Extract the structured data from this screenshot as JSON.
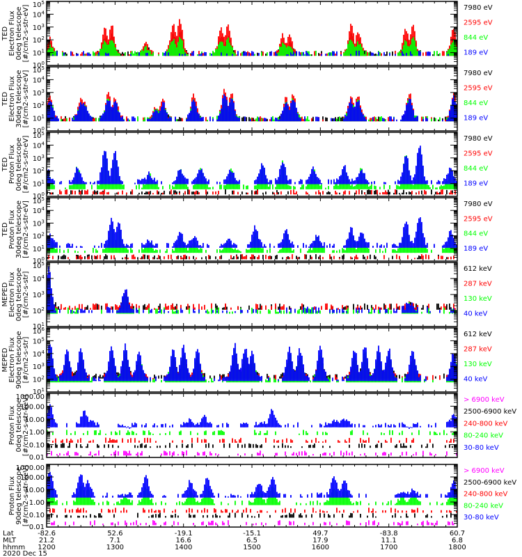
{
  "figure": {
    "date": "2020 Dec 15",
    "x_axis": {
      "row_labels": [
        "Lat",
        "MLT",
        "hhmm"
      ],
      "range_hours": [
        12.0,
        18.0
      ],
      "ticks": [
        {
          "hour": 12,
          "lat": "-82.6",
          "mlt": "21.2",
          "hhmm": "1200"
        },
        {
          "hour": 13,
          "lat": "52.6",
          "mlt": "7.1",
          "hhmm": "1300"
        },
        {
          "hour": 14,
          "lat": "-19.1",
          "mlt": "16.6",
          "hhmm": "1400"
        },
        {
          "hour": 15,
          "lat": "-15.1",
          "mlt": "6.5",
          "hhmm": "1500"
        },
        {
          "hour": 16,
          "lat": "49.7",
          "mlt": "17.9",
          "hhmm": "1600"
        },
        {
          "hour": 17,
          "lat": "-83.8",
          "mlt": "11.1",
          "hhmm": "1700"
        },
        {
          "hour": 18,
          "lat": "60.7",
          "mlt": "6.8",
          "hhmm": "1800"
        }
      ]
    }
  },
  "colors": {
    "black": "#000000",
    "red": "#ff0000",
    "green": "#00ff00",
    "blue": "#0000ff",
    "magenta": "#ff00ff"
  },
  "chart_data": [
    {
      "type": "line",
      "title": "",
      "ylabel_lines": [
        "TED",
        "Electron Flux",
        "0deg telescope",
        "[#/cm2-s-str-eV]"
      ],
      "yscale": "log",
      "ylim": [
        1,
        100000
      ],
      "ytick_labels": [
        "10^0",
        "10^1",
        "10^2",
        "10^3",
        "10^4",
        "10^5"
      ],
      "legend": [
        {
          "label": "7980 eV",
          "color": "black"
        },
        {
          "label": "2595 eV",
          "color": "red"
        },
        {
          "label": "844 eV",
          "color": "green"
        },
        {
          "label": "189 eV",
          "color": "blue"
        }
      ],
      "bursts_hours": [
        12.05,
        12.85,
        12.95,
        13.45,
        13.85,
        13.95,
        14.55,
        14.65,
        15.45,
        15.55,
        16.45,
        16.55,
        17.25,
        17.35,
        17.95
      ],
      "peak_log_flux": [
        2.1,
        2.9,
        3.2,
        1.8,
        3.2,
        3.5,
        3.0,
        3.1,
        2.4,
        2.3,
        3.1,
        2.6,
        2.8,
        3.2,
        2.9
      ],
      "series": [
        {
          "name": "7980 eV",
          "color": "black",
          "base_log": 1.0,
          "scale": 0.65
        },
        {
          "name": "2595 eV",
          "color": "red",
          "base_log": 1.0,
          "scale": 1.0
        },
        {
          "name": "844 eV",
          "color": "green",
          "base_log": 1.0,
          "scale": 0.5
        },
        {
          "name": "189 eV",
          "color": "blue",
          "base_log": 1.0,
          "scale": 0.0
        }
      ]
    },
    {
      "type": "line",
      "title": "",
      "ylabel_lines": [
        "TED",
        "Electron Flux",
        "30deg telescope",
        "[#/cm2-s-str-eV]"
      ],
      "yscale": "log",
      "ylim": [
        1,
        100000
      ],
      "ytick_labels": [
        "10^0",
        "10^1",
        "10^2",
        "10^3",
        "10^4",
        "10^5"
      ],
      "legend": [
        {
          "label": "7980 eV",
          "color": "black"
        },
        {
          "label": "2595 eV",
          "color": "red"
        },
        {
          "label": "844 eV",
          "color": "green"
        },
        {
          "label": "189 eV",
          "color": "blue"
        }
      ],
      "bursts_hours": [
        12.05,
        12.5,
        12.55,
        12.9,
        13.0,
        13.6,
        13.7,
        14.15,
        14.6,
        14.7,
        15.5,
        15.6,
        16.45,
        16.55,
        17.3,
        17.95
      ],
      "peak_log_flux": [
        2.8,
        2.5,
        2.3,
        2.9,
        2.6,
        1.9,
        2.5,
        2.8,
        3.3,
        3.0,
        2.6,
        2.9,
        2.7,
        2.8,
        3.0,
        3.0
      ],
      "series": [
        {
          "name": "7980 eV",
          "color": "black",
          "base_log": 1.0,
          "scale": 0.6
        },
        {
          "name": "2595 eV",
          "color": "red",
          "base_log": 1.0,
          "scale": 1.0
        },
        {
          "name": "844 eV",
          "color": "green",
          "base_log": 1.0,
          "scale": 0.75
        },
        {
          "name": "189 eV",
          "color": "blue",
          "base_log": 1.0,
          "scale": 0.8
        }
      ]
    },
    {
      "type": "line",
      "title": "",
      "ylabel_lines": [
        "TED",
        "Proton Flux",
        "0deg telescope",
        "[#/cm2-s-str-eV]"
      ],
      "yscale": "log",
      "ylim": [
        1,
        100000
      ],
      "ytick_labels": [
        "10^0",
        "10^1",
        "10^2",
        "10^3",
        "10^4",
        "10^5"
      ],
      "legend": [
        {
          "label": "7980 eV",
          "color": "black"
        },
        {
          "label": "2595 eV",
          "color": "red"
        },
        {
          "label": "844 eV",
          "color": "green"
        },
        {
          "label": "189 eV",
          "color": "blue"
        }
      ],
      "bursts_hours": [
        12.0,
        12.45,
        12.85,
        13.0,
        13.5,
        13.95,
        14.25,
        14.7,
        15.15,
        15.45,
        15.9,
        16.35,
        16.6,
        17.25,
        17.45,
        17.9
      ],
      "peak_log_flux": [
        2.2,
        2.3,
        3.6,
        3.4,
        1.8,
        2.2,
        2.2,
        2.1,
        2.6,
        2.8,
        2.2,
        2.4,
        2.2,
        3.3,
        3.9,
        2.2
      ],
      "series": [
        {
          "name": "7980 eV",
          "color": "black",
          "base_log": 0.4,
          "scale": 0.0
        },
        {
          "name": "2595 eV",
          "color": "red",
          "base_log": 0.4,
          "scale": 0.0
        },
        {
          "name": "844 eV",
          "color": "green",
          "base_log": 0.8,
          "scale": 0.95
        },
        {
          "name": "189 eV",
          "color": "blue",
          "base_log": 1.2,
          "scale": 1.0
        }
      ]
    },
    {
      "type": "line",
      "title": "",
      "ylabel_lines": [
        "TED",
        "Proton Flux",
        "30deg telescope",
        "[#/cm2-s-str-eV]"
      ],
      "yscale": "log",
      "ylim": [
        1,
        100000
      ],
      "ytick_labels": [
        "10^0",
        "10^1",
        "10^2",
        "10^3",
        "10^4",
        "10^5"
      ],
      "legend": [
        {
          "label": "7980 eV",
          "color": "black"
        },
        {
          "label": "2595 eV",
          "color": "red"
        },
        {
          "label": "844 eV",
          "color": "green"
        },
        {
          "label": "189 eV",
          "color": "blue"
        }
      ],
      "bursts_hours": [
        12.05,
        12.95,
        13.05,
        13.5,
        13.95,
        14.15,
        14.65,
        15.05,
        15.5,
        15.95,
        16.45,
        16.6,
        17.25,
        17.45,
        17.9
      ],
      "peak_log_flux": [
        2.1,
        3.3,
        3.0,
        1.6,
        2.3,
        1.9,
        1.7,
        2.7,
        2.5,
        2.0,
        2.6,
        2.4,
        3.2,
        3.6,
        2.3
      ],
      "series": [
        {
          "name": "7980 eV",
          "color": "black",
          "base_log": 0.4,
          "scale": 0.0
        },
        {
          "name": "2595 eV",
          "color": "red",
          "base_log": 0.4,
          "scale": 0.0
        },
        {
          "name": "844 eV",
          "color": "green",
          "base_log": 0.9,
          "scale": 0.8
        },
        {
          "name": "189 eV",
          "color": "blue",
          "base_log": 1.3,
          "scale": 1.0
        }
      ]
    },
    {
      "type": "line",
      "title": "",
      "ylabel_lines": [
        "MEPED",
        "Electron Flux",
        "0deg telescope",
        "[#/cm2-s-str]"
      ],
      "yscale": "log",
      "ylim": [
        10,
        100000
      ],
      "ytick_labels": [
        "10^1",
        "10^2",
        "10^3",
        "10^4",
        "10^5"
      ],
      "legend": [
        {
          "label": "612 keV",
          "color": "black"
        },
        {
          "label": "287 keV",
          "color": "red"
        },
        {
          "label": "130 keV",
          "color": "green"
        },
        {
          "label": "40 keV",
          "color": "blue"
        }
      ],
      "bursts_hours": [
        12.03,
        13.15,
        17.3
      ],
      "peak_log_flux": [
        4.6,
        3.4,
        2.5
      ],
      "floor_log_flux": {
        "black": 2.3,
        "red": 2.3,
        "green": 2.05,
        "blue": 2.1
      },
      "series": [
        {
          "name": "612 keV",
          "color": "black",
          "base_log": 2.3,
          "scale": 0.6
        },
        {
          "name": "287 keV",
          "color": "red",
          "base_log": 2.3,
          "scale": 0.7
        },
        {
          "name": "130 keV",
          "color": "green",
          "base_log": 2.05,
          "scale": 0.75
        },
        {
          "name": "40 keV",
          "color": "blue",
          "base_log": 2.1,
          "scale": 1.0
        }
      ]
    },
    {
      "type": "line",
      "title": "",
      "ylabel_lines": [
        "MEPED",
        "Electron Flux",
        "90deg telescope",
        "[#/cm2-s-str]"
      ],
      "yscale": "log",
      "ylim": [
        10,
        1000000
      ],
      "ytick_labels": [
        "10^1",
        "10^2",
        "10^3",
        "10^4",
        "10^5",
        "10^6"
      ],
      "legend": [
        {
          "label": "612 keV",
          "color": "black"
        },
        {
          "label": "287 keV",
          "color": "red"
        },
        {
          "label": "130 keV",
          "color": "green"
        },
        {
          "label": "40 keV",
          "color": "blue"
        }
      ],
      "bursts_hours": [
        12.05,
        12.3,
        12.5,
        12.95,
        13.15,
        13.35,
        13.85,
        14.0,
        14.2,
        14.75,
        14.9,
        15.0,
        15.55,
        15.7,
        16.0,
        16.5,
        16.65,
        16.85,
        17.0,
        17.35,
        17.95
      ],
      "peak_log_flux": [
        4.8,
        4.2,
        4.4,
        4.5,
        4.7,
        4.2,
        4.4,
        4.6,
        4.4,
        4.7,
        4.5,
        4.1,
        4.5,
        4.3,
        4.5,
        4.3,
        4.6,
        4.6,
        4.4,
        4.3,
        4.1
      ],
      "series": [
        {
          "name": "612 keV",
          "color": "black",
          "base_log": 2.3,
          "scale": 0.62
        },
        {
          "name": "287 keV",
          "color": "red",
          "base_log": 2.2,
          "scale": 0.72
        },
        {
          "name": "130 keV",
          "color": "green",
          "base_log": 2.0,
          "scale": 0.85
        },
        {
          "name": "40 keV",
          "color": "blue",
          "base_log": 2.1,
          "scale": 1.0
        }
      ]
    },
    {
      "type": "line",
      "title": "",
      "ylabel_lines": [
        "Proton Flux",
        "0deg telescope",
        "[#/cm2-s-str-keV]"
      ],
      "yscale": "log",
      "ylim": [
        0.01,
        1000
      ],
      "ytick_labels": [
        "0.01",
        "0.10",
        "1.00",
        "10.00",
        "100.00",
        "1000.00"
      ],
      "legend": [
        {
          "label": "> 6900 keV",
          "color": "magenta"
        },
        {
          "label": "2500-6900 keV",
          "color": "black"
        },
        {
          "label": "240-800 keV",
          "color": "red"
        },
        {
          "label": "80-240 keV",
          "color": "green"
        },
        {
          "label": "30-80 keV",
          "color": "blue"
        }
      ],
      "bursts_hours": [
        12.05,
        12.55,
        12.65,
        13.2,
        14.1,
        14.3,
        15.15,
        15.3,
        16.2,
        16.35,
        17.3,
        17.95
      ],
      "peak_log_flux": [
        2.2,
        1.6,
        1.0,
        0.4,
        1.0,
        1.2,
        0.8,
        1.7,
        0.9,
        1.0,
        0.3,
        1.3
      ],
      "series": [
        {
          "name": "> 6900 keV",
          "color": "magenta",
          "base_log": -1.6,
          "scale": 0.0
        },
        {
          "name": "2500-6900 keV",
          "color": "black",
          "base_log": -1.0,
          "scale": 0.0
        },
        {
          "name": "240-800 keV",
          "color": "red",
          "base_log": -0.6,
          "scale": 0.0
        },
        {
          "name": "80-240 keV",
          "color": "green",
          "base_log": 0.0,
          "scale": 0.0
        },
        {
          "name": "30-80 keV",
          "color": "blue",
          "base_log": 0.6,
          "scale": 1.0
        }
      ]
    },
    {
      "type": "line",
      "title": "",
      "ylabel_lines": [
        "Proton Flux",
        "90deg telescope",
        "[#/cm2-s-str-keV]"
      ],
      "yscale": "log",
      "ylim": [
        0.01,
        1000
      ],
      "ytick_labels": [
        "0.01",
        "0.10",
        "1.00",
        "10.00",
        "100.00",
        "1000.00"
      ],
      "legend": [
        {
          "label": "> 6900 keV",
          "color": "magenta"
        },
        {
          "label": "2500-6900 keV",
          "color": "black"
        },
        {
          "label": "240-800 keV",
          "color": "red"
        },
        {
          "label": "80-240 keV",
          "color": "green"
        },
        {
          "label": "30-80 keV",
          "color": "blue"
        }
      ],
      "bursts_hours": [
        12.05,
        12.5,
        12.6,
        13.15,
        13.45,
        14.1,
        14.35,
        15.1,
        15.3,
        16.2,
        16.35,
        17.2,
        17.35,
        17.95
      ],
      "peak_log_flux": [
        2.5,
        2.3,
        1.6,
        0.6,
        2.0,
        1.7,
        2.0,
        1.6,
        2.0,
        2.0,
        1.8,
        0.8,
        1.0,
        1.6
      ],
      "series": [
        {
          "name": "> 6900 keV",
          "color": "magenta",
          "base_log": -1.6,
          "scale": 0.0
        },
        {
          "name": "2500-6900 keV",
          "color": "black",
          "base_log": -1.0,
          "scale": 0.0
        },
        {
          "name": "240-800 keV",
          "color": "red",
          "base_log": -0.6,
          "scale": 0.0
        },
        {
          "name": "80-240 keV",
          "color": "green",
          "base_log": 0.0,
          "scale": 0.6
        },
        {
          "name": "30-80 keV",
          "color": "blue",
          "base_log": 0.6,
          "scale": 1.0
        }
      ]
    }
  ]
}
